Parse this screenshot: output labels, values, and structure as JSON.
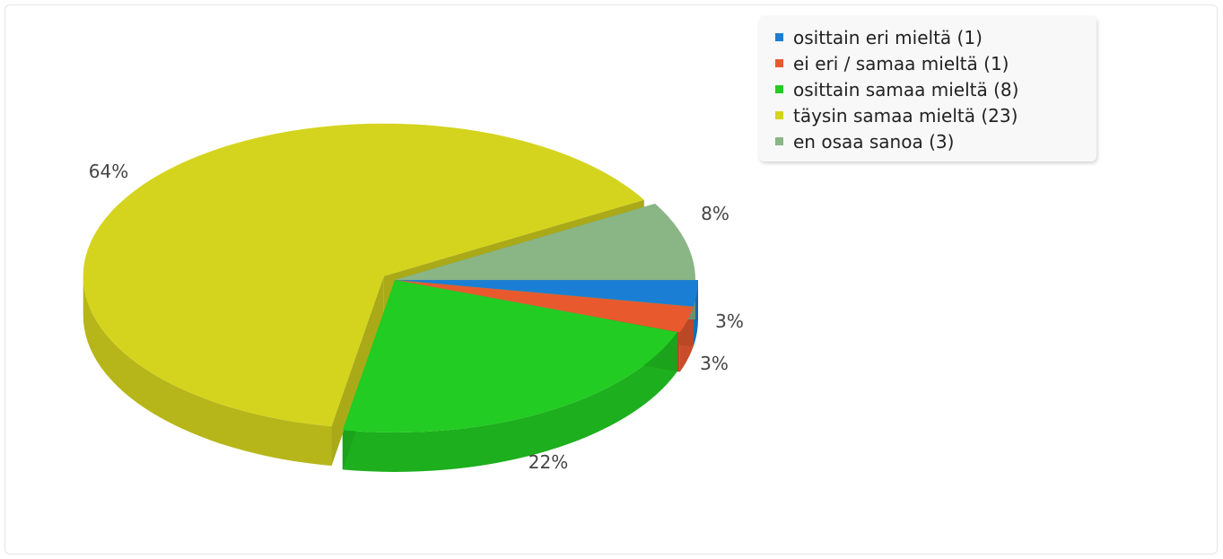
{
  "chart_data": {
    "type": "pie",
    "title": "",
    "slices": [
      {
        "label": "osittain eri mieltä (1)",
        "value": 1,
        "percent_label": "3%",
        "color": "#1a7fd4"
      },
      {
        "label": "ei eri / samaa mieltä (1)",
        "value": 1,
        "percent_label": "3%",
        "color": "#e85a2e"
      },
      {
        "label": "osittain samaa mieltä (8)",
        "value": 8,
        "percent_label": "22%",
        "color": "#22cc22"
      },
      {
        "label": "täysin samaa mieltä (23)",
        "value": 23,
        "percent_label": "64%",
        "color": "#d4d41e"
      },
      {
        "label": "en osaa sanoa (3)",
        "value": 3,
        "percent_label": "8%",
        "color": "#8ab585"
      }
    ],
    "legend_position": "top-right",
    "three_d": true,
    "exploded": true
  }
}
